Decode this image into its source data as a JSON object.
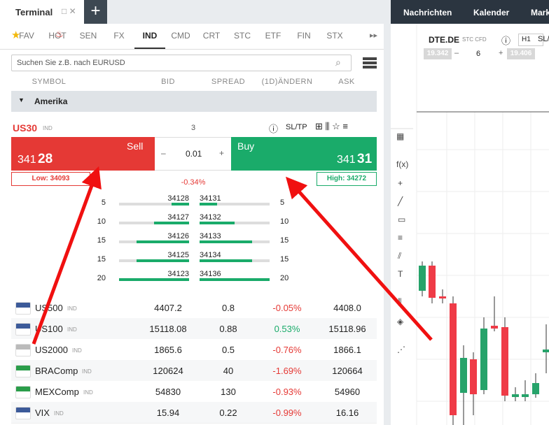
{
  "tabs": {
    "terminal": "Terminal"
  },
  "categories": [
    "FAV",
    "HOT",
    "SEN",
    "FX",
    "IND",
    "CMD",
    "CRT",
    "STC",
    "ETF",
    "FIN",
    "STX"
  ],
  "search_placeholder": "Suchen Sie z.B. nach EURUSD",
  "columns": [
    "SYMBOL",
    "BID",
    "SPREAD",
    "(1D)ÄNDERN",
    "ASK"
  ],
  "group": "Amerika",
  "selected": {
    "symbol": "US30",
    "type": "IND",
    "value": "3",
    "sltp": "SL/TP",
    "sell_label": "Sell",
    "sell_price": {
      "head": "341",
      "tail": "28"
    },
    "buy_label": "Buy",
    "buy_price": {
      "head": "341",
      "tail": "31"
    },
    "volume": "0.01",
    "minus": "–",
    "plus": "+",
    "low": "Low: 34093",
    "change": "-0.34%",
    "high": "High: 34272"
  },
  "depth": [
    {
      "bid_volume": "5",
      "bid": "34128",
      "ask": "34131",
      "ask_volume": "5"
    },
    {
      "bid_volume": "10",
      "bid": "34127",
      "ask": "34132",
      "ask_volume": "10"
    },
    {
      "bid_volume": "15",
      "bid": "34126",
      "ask": "34133",
      "ask_volume": "15"
    },
    {
      "bid_volume": "15",
      "bid": "34125",
      "ask": "34134",
      "ask_volume": "15"
    },
    {
      "bid_volume": "20",
      "bid": "34123",
      "ask": "34136",
      "ask_volume": "20"
    }
  ],
  "instruments": [
    {
      "symbol": "US500",
      "type": "IND",
      "bid": "4407.2",
      "spread": "0.8",
      "change": "-0.05%",
      "ask": "4408.0"
    },
    {
      "symbol": "US100",
      "type": "IND",
      "bid": "15118.08",
      "spread": "0.88",
      "change": "0.53%",
      "ask": "15118.96"
    },
    {
      "symbol": "US2000",
      "type": "IND",
      "bid": "1865.6",
      "spread": "0.5",
      "change": "-0.76%",
      "ask": "1866.1"
    },
    {
      "symbol": "BRAComp",
      "type": "IND",
      "bid": "120624",
      "spread": "40",
      "change": "-1.69%",
      "ask": "120664"
    },
    {
      "symbol": "MEXComp",
      "type": "IND",
      "bid": "54830",
      "spread": "130",
      "change": "-0.93%",
      "ask": "54960"
    },
    {
      "symbol": "VIX",
      "type": "IND",
      "bid": "15.94",
      "spread": "0.22",
      "change": "-0.99%",
      "ask": "16.16"
    }
  ],
  "right": {
    "nav": [
      "Nachrichten",
      "Kalender",
      "Mark"
    ],
    "chart": {
      "symbol": "DTE.DE",
      "type": "STC CFD",
      "timeframe": "H1",
      "sltp": "SL/",
      "bid": "19.342",
      "minus": "–",
      "volume": "6",
      "plus": "+",
      "ask": "19.406"
    }
  }
}
